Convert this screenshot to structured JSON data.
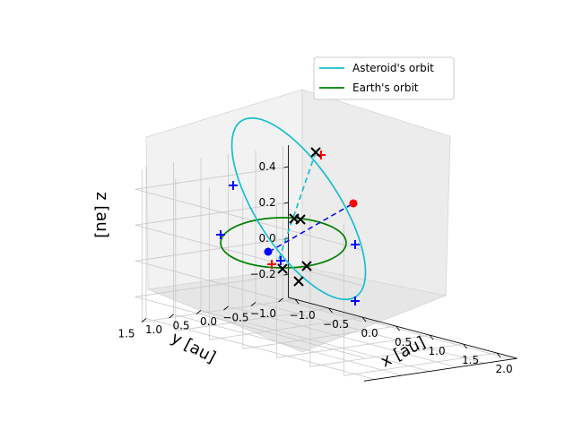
{
  "chart_data": {
    "type": "line3d",
    "title": "",
    "xlabel": "x [au]",
    "ylabel": "y [au]",
    "zlabel": "z [au]",
    "x_ticks": [
      "−1.0",
      "−0.5",
      "0.0",
      "0.5",
      "1.0",
      "1.5",
      "2.0"
    ],
    "y_ticks": [
      "−1.0",
      "−0.5",
      "0.0",
      "0.5",
      "1.0",
      "1.5"
    ],
    "z_ticks": [
      "−0.2",
      "0.0",
      "0.2",
      "0.4"
    ],
    "xlim": [
      -1.1,
      2.3
    ],
    "ylim": [
      -1.1,
      1.7
    ],
    "zlim": [
      -0.33,
      0.52
    ],
    "grid": true,
    "legend_position": "top-right",
    "series": [
      {
        "name": "Asteroid's orbit",
        "color": "#17becf",
        "style": "solid",
        "kind": "ellipse-orbit"
      },
      {
        "name": "Earth's orbit",
        "color": "#008000",
        "style": "solid",
        "kind": "circle-orbit"
      }
    ],
    "markers": {
      "sun": {
        "x": 0.0,
        "y": 0.0,
        "z": 0.0,
        "color": "#0000ff",
        "shape": "dot"
      },
      "asteroid": {
        "x": 1.55,
        "y": -0.35,
        "z": 0.26,
        "color": "#ff0000",
        "shape": "dot"
      },
      "red_plus_count": 2,
      "blue_plus_count": 5,
      "black_x_count": 7
    }
  }
}
